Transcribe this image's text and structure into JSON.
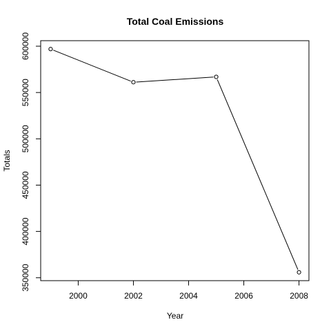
{
  "chart_data": {
    "type": "line",
    "title": "Total Coal Emissions",
    "xlabel": "Year",
    "ylabel": "Totals",
    "x": [
      1999,
      2002,
      2005,
      2008
    ],
    "series": [
      {
        "values": [
          596911,
          561130,
          566868,
          355905
        ]
      }
    ],
    "xlim": [
      1998.64,
      2008.36
    ],
    "ylim": [
      346850,
      605960
    ],
    "xticks": [
      2000,
      2002,
      2004,
      2006,
      2008
    ],
    "yticks": [
      350000,
      400000,
      450000,
      500000,
      550000,
      600000
    ],
    "point_style": "open-circle",
    "line_color": "#000000",
    "grid": false,
    "legend": "none"
  }
}
